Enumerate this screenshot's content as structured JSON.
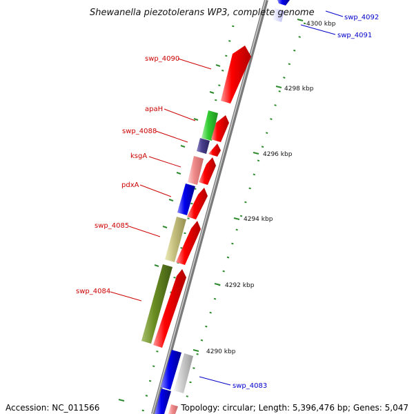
{
  "title": "Shewanella piezotolerans WP3, complete genome",
  "accession": "Accession: NC_011566",
  "topology": "Topology: circular; Length: 5,396,476 bp; Genes: 5,047",
  "colors": {
    "backbone": "#9a9a9a",
    "forward_cds": "#ff0000",
    "label_red": "#cc0000",
    "label_blue": "#0000cc",
    "tick_green": "#2d8a2d"
  },
  "kbp_ticks": [
    "4300 kbp",
    "4298 kbp",
    "4296 kbp",
    "4294 kbp",
    "4292 kbp",
    "4290 kbp"
  ],
  "labels": [
    {
      "text": "swp_4092",
      "color": "blue"
    },
    {
      "text": "swp_4091",
      "color": "blue"
    },
    {
      "text": "swp_4090",
      "color": "red"
    },
    {
      "text": "apaH",
      "color": "red"
    },
    {
      "text": "swp_4088",
      "color": "red"
    },
    {
      "text": "ksgA",
      "color": "red"
    },
    {
      "text": "pdxA",
      "color": "red"
    },
    {
      "text": "swp_4085",
      "color": "red"
    },
    {
      "text": "swp_4084",
      "color": "red"
    },
    {
      "text": "swp_4083",
      "color": "blue"
    }
  ]
}
